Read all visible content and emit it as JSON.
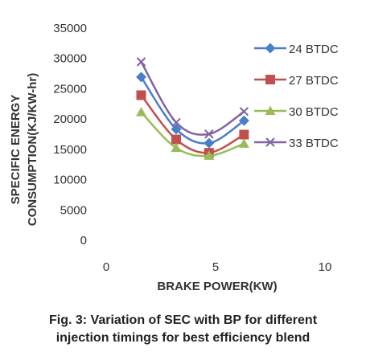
{
  "chart_data": {
    "type": "line",
    "xlabel": "BRAKE POWER(KW)",
    "ylabel_line1": "SPECIFIC ENERGY",
    "ylabel_line2": "CONSUMPTION(KJ/KW-hr)",
    "xlim": [
      0,
      10
    ],
    "ylim": [
      0,
      35000
    ],
    "xticks": [
      "0",
      "5",
      "10"
    ],
    "yticks": [
      "0",
      "5000",
      "10000",
      "15000",
      "20000",
      "25000",
      "30000",
      "35000"
    ],
    "grid": false,
    "legend_position": "right",
    "series": [
      {
        "name": "24 BTDC",
        "color": "#4a7ec9",
        "marker": "diamond",
        "x": [
          1.6,
          3.2,
          4.7,
          6.3
        ],
        "y": [
          26800,
          18200,
          15900,
          19600
        ]
      },
      {
        "name": "27 BTDC",
        "color": "#c0504d",
        "marker": "square",
        "x": [
          1.6,
          3.2,
          4.7,
          6.3
        ],
        "y": [
          23800,
          16500,
          14300,
          17300
        ]
      },
      {
        "name": "30 BTDC",
        "color": "#9bbb59",
        "marker": "triangle",
        "x": [
          1.6,
          3.2,
          4.7,
          6.3
        ],
        "y": [
          21000,
          15100,
          13800,
          15800
        ]
      },
      {
        "name": "33 BTDC",
        "color": "#8064a2",
        "marker": "x",
        "x": [
          1.6,
          3.2,
          4.7,
          6.3
        ],
        "y": [
          29300,
          19300,
          17400,
          21100
        ]
      }
    ]
  },
  "caption": {
    "line1": "Fig. 3: Variation of SEC with BP for different",
    "line2": "injection timings for best efficiency blend"
  }
}
